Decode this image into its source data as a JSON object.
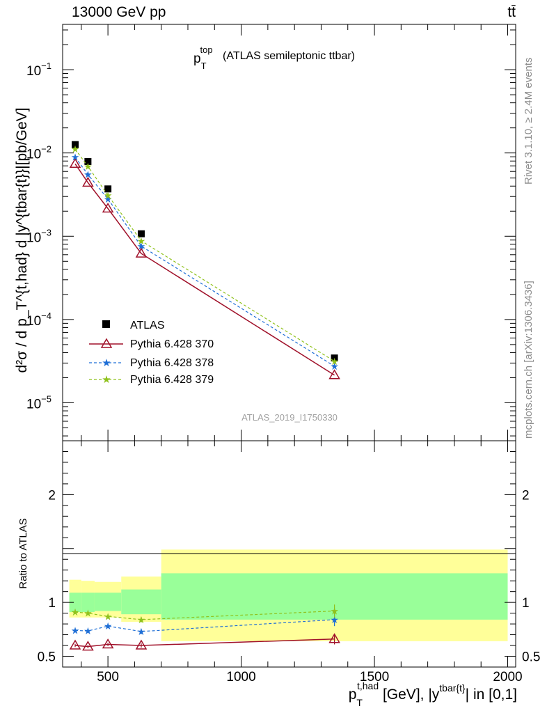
{
  "header": {
    "left": "13000 GeV pp",
    "right": "tt̄"
  },
  "side_labels": {
    "rivet": "Rivet 3.1.10, ≥ 2.4M events",
    "mcplots": "mcplots.cern.ch [arXiv:1306.3436]"
  },
  "colors": {
    "atlas": "#000000",
    "p370": "#a0112a",
    "p378": "#1f6fd6",
    "p379": "#8fc21c",
    "band_outer": "#ffff99",
    "band_inner": "#99ff99"
  },
  "chart_data": [
    {
      "type": "scatter",
      "panel": "main",
      "title": {
        "main": "p",
        "sup": "top",
        "sub": "T",
        "rest": "(ATLAS semileptonic ttbar)"
      },
      "ylabel": "d²σ / d p_T^{t,had} d |y^{tbar{t}}|[pb/GeV]",
      "watermark": "ATLAS_2019_I1750330",
      "yscale": "log",
      "xlim": [
        330,
        2030
      ],
      "ylim": [
        3.5e-06,
        0.35
      ],
      "ytick_labels": [
        {
          "value": 0.1,
          "base": "10",
          "exp": "−1"
        },
        {
          "value": 0.01,
          "base": "10",
          "exp": "−2"
        },
        {
          "value": 0.001,
          "base": "10",
          "exp": "−3"
        },
        {
          "value": 0.0001,
          "base": "10",
          "exp": "−4"
        },
        {
          "value": 1e-05,
          "base": "10",
          "exp": "−5"
        }
      ],
      "legend_position": "lower-left",
      "bins": [
        [
          355,
          400
        ],
        [
          400,
          450
        ],
        [
          450,
          550
        ],
        [
          550,
          700
        ],
        [
          700,
          2000
        ]
      ],
      "x": [
        377,
        425,
        500,
        625,
        1350
      ],
      "series": [
        {
          "name": "ATLAS",
          "marker": "square",
          "values": [
            0.0126,
            0.0079,
            0.0037,
            0.00107,
            3.45e-05
          ]
        },
        {
          "name": "Pythia 6.428 370",
          "marker": "triangle",
          "line": "solid",
          "values": [
            0.0074,
            0.0044,
            0.00215,
            0.00062,
            2.15e-05
          ]
        },
        {
          "name": "Pythia 6.428 378",
          "marker": "star",
          "line": "dashed",
          "values": [
            0.0089,
            0.0055,
            0.0028,
            0.00076,
            2.75e-05
          ]
        },
        {
          "name": "Pythia 6.428 379",
          "marker": "star",
          "line": "dashed",
          "values": [
            0.0111,
            0.0069,
            0.0031,
            0.00088,
            3.15e-05
          ]
        }
      ]
    },
    {
      "type": "scatter",
      "panel": "ratio",
      "ylabel": "Ratio to ATLAS",
      "xlabel": {
        "main": "p",
        "sub": "T",
        "sup": "t,had",
        "rest": " [GeV], |y",
        "sup2": "tbar{t}",
        "rest2": "| in [0,1]"
      },
      "xlim": [
        330,
        2030
      ],
      "ylim": [
        0.4,
        2.5
      ],
      "x_ticks": [
        500,
        1000,
        1500,
        2000
      ],
      "y_ticks": [
        0.5,
        1,
        2
      ],
      "bands": [
        {
          "x0": 355,
          "x1": 400,
          "outer": [
            0.86,
            1.21
          ],
          "inner": [
            0.91,
            1.09
          ]
        },
        {
          "x0": 400,
          "x1": 450,
          "outer": [
            0.86,
            1.2
          ],
          "inner": [
            0.91,
            1.09
          ]
        },
        {
          "x0": 450,
          "x1": 550,
          "outer": [
            0.86,
            1.19
          ],
          "inner": [
            0.92,
            1.09
          ]
        },
        {
          "x0": 550,
          "x1": 700,
          "outer": [
            0.82,
            1.24
          ],
          "inner": [
            0.89,
            1.12
          ]
        },
        {
          "x0": 700,
          "x1": 2000,
          "outer": [
            0.64,
            1.49
          ],
          "inner": [
            0.84,
            1.27
          ]
        }
      ],
      "series": [
        {
          "name": "Pythia 6.428 370",
          "marker": "triangle",
          "line": "solid",
          "values": [
            0.6,
            0.59,
            0.61,
            0.6,
            0.66
          ],
          "errors": [
            0.015,
            0.015,
            0.015,
            0.02,
            0.05
          ]
        },
        {
          "name": "Pythia 6.428 378",
          "marker": "star",
          "line": "dashed",
          "values": [
            0.74,
            0.735,
            0.78,
            0.73,
            0.84
          ],
          "errors": [
            0.015,
            0.015,
            0.02,
            0.025,
            0.06
          ]
        },
        {
          "name": "Pythia 6.428 379",
          "marker": "star",
          "line": "dashed",
          "values": [
            0.91,
            0.9,
            0.87,
            0.84,
            0.92
          ],
          "errors": [
            0.015,
            0.015,
            0.02,
            0.025,
            0.06
          ]
        }
      ]
    }
  ]
}
